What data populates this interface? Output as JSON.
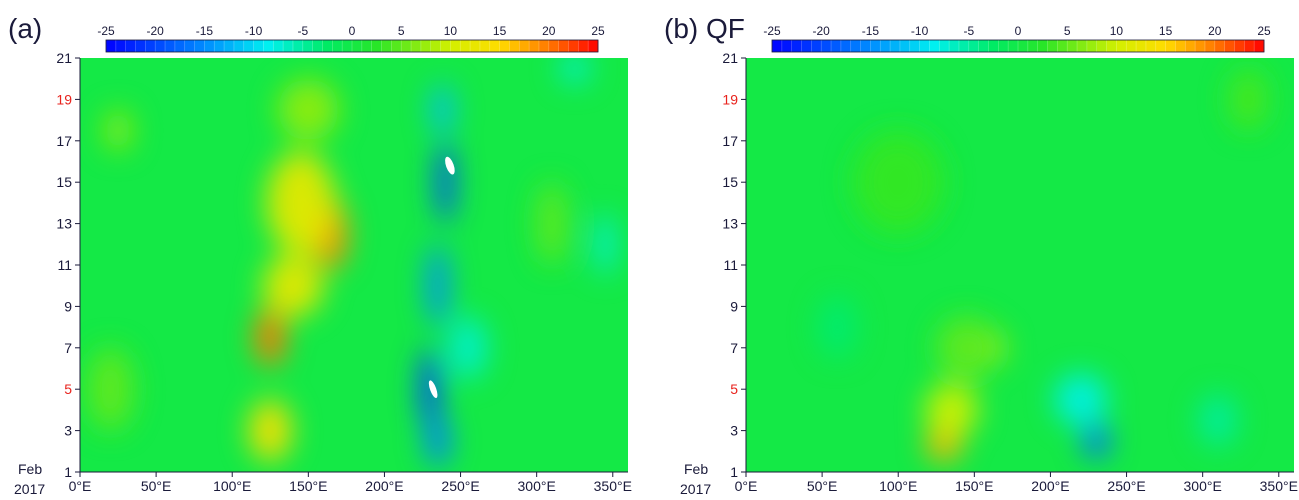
{
  "panels": [
    {
      "label": "(a)",
      "colorbar": {
        "min": -25,
        "max": 25,
        "step": 1,
        "tick_labels": [
          "-25",
          "-20",
          "-15",
          "-10",
          "-5",
          "0",
          "5",
          "10",
          "15",
          "20",
          "25"
        ]
      },
      "x_tick_labels": [
        "0°E",
        "50°E",
        "100°E",
        "150°E",
        "200°E",
        "250°E",
        "300°E",
        "350°E"
      ],
      "y_tick_labels": [
        "1",
        "3",
        "5",
        "7",
        "9",
        "11",
        "13",
        "15",
        "17",
        "19",
        "21"
      ],
      "highlighted_y_ticks": [
        "5",
        "19"
      ],
      "date_label": [
        "Feb",
        "2017"
      ]
    },
    {
      "label": "(b) QF",
      "colorbar": {
        "min": -25,
        "max": 25,
        "step": 1,
        "tick_labels": [
          "-25",
          "-20",
          "-15",
          "-10",
          "-5",
          "0",
          "5",
          "10",
          "15",
          "20",
          "25"
        ]
      },
      "x_tick_labels": [
        "0°E",
        "50°E",
        "100°E",
        "150°E",
        "200°E",
        "250°E",
        "300°E",
        "350°E"
      ],
      "y_tick_labels": [
        "1",
        "3",
        "5",
        "7",
        "9",
        "11",
        "13",
        "15",
        "17",
        "19",
        "21"
      ],
      "highlighted_y_ticks": [
        "5",
        "19"
      ],
      "date_label": [
        "Feb",
        "2017"
      ]
    }
  ],
  "colors": {
    "axis": "#1a1a3a",
    "highlight_tick": "#e8221c",
    "missing": "#ffffff"
  },
  "chart_data": [
    {
      "type": "heatmap",
      "title": "(a)",
      "xlabel": "",
      "ylabel": "",
      "xlim": [
        0,
        360
      ],
      "ylim": [
        1,
        21
      ],
      "x_ticks": [
        0,
        50,
        100,
        150,
        200,
        250,
        300,
        350
      ],
      "y_ticks": [
        1,
        3,
        5,
        7,
        9,
        11,
        13,
        15,
        17,
        19,
        21
      ],
      "color_range": [
        -25,
        25
      ],
      "background_value": 0,
      "features": [
        {
          "lon": 125,
          "day": 7.5,
          "value": 20,
          "width": 20,
          "height": 2.8
        },
        {
          "lon": 165,
          "day": 12.5,
          "value": 19,
          "width": 22,
          "height": 3.5
        },
        {
          "lon": 145,
          "day": 14,
          "value": 12,
          "width": 45,
          "height": 5
        },
        {
          "lon": 125,
          "day": 3,
          "value": 14,
          "width": 28,
          "height": 3
        },
        {
          "lon": 140,
          "day": 10,
          "value": 12,
          "width": 40,
          "height": 3
        },
        {
          "lon": 150,
          "day": 18.5,
          "value": 7,
          "width": 40,
          "height": 3
        },
        {
          "lon": 25,
          "day": 17.5,
          "value": 7,
          "width": 18,
          "height": 2
        },
        {
          "lon": 20,
          "day": 5,
          "value": 5,
          "width": 30,
          "height": 4
        },
        {
          "lon": 310,
          "day": 13,
          "value": 5,
          "width": 20,
          "height": 4
        },
        {
          "lon": 240,
          "day": 15,
          "value": -20,
          "width": 12,
          "height": 4
        },
        {
          "lon": 230,
          "day": 5,
          "value": -20,
          "width": 14,
          "height": 4
        },
        {
          "lon": 235,
          "day": 10,
          "value": -15,
          "width": 14,
          "height": 4
        },
        {
          "lon": 235,
          "day": 2.5,
          "value": -16,
          "width": 16,
          "height": 2.5
        },
        {
          "lon": 238,
          "day": 18.5,
          "value": -12,
          "width": 14,
          "height": 2.5
        },
        {
          "lon": 345,
          "day": 12,
          "value": -8,
          "width": 12,
          "height": 3
        },
        {
          "lon": 325,
          "day": 20.5,
          "value": -7,
          "width": 20,
          "height": 1.5
        },
        {
          "lon": 255,
          "day": 7,
          "value": -7,
          "width": 25,
          "height": 3
        }
      ],
      "missing_regions": [
        {
          "lon": 243,
          "day": 15.8,
          "width": 5,
          "height": 0.9
        },
        {
          "lon": 232,
          "day": 5,
          "width": 4,
          "height": 0.9
        }
      ]
    },
    {
      "type": "heatmap",
      "title": "(b) QF",
      "xlabel": "",
      "ylabel": "",
      "xlim": [
        0,
        360
      ],
      "ylim": [
        1,
        21
      ],
      "x_ticks": [
        0,
        50,
        100,
        150,
        200,
        250,
        300,
        350
      ],
      "y_ticks": [
        1,
        3,
        5,
        7,
        9,
        11,
        13,
        15,
        17,
        19,
        21
      ],
      "color_range": [
        -25,
        25
      ],
      "background_value": 0,
      "features": [
        {
          "lon": 130,
          "day": 2.3,
          "value": 17,
          "width": 24,
          "height": 1.6
        },
        {
          "lon": 135,
          "day": 4,
          "value": 10,
          "width": 35,
          "height": 2.5
        },
        {
          "lon": 165,
          "day": 7,
          "value": 9,
          "width": 10,
          "height": 1.5
        },
        {
          "lon": 145,
          "day": 7,
          "value": 5,
          "width": 40,
          "height": 3
        },
        {
          "lon": 230,
          "day": 2.5,
          "value": -17,
          "width": 18,
          "height": 1.7
        },
        {
          "lon": 220,
          "day": 4.5,
          "value": -8,
          "width": 35,
          "height": 2.5
        },
        {
          "lon": 310,
          "day": 3.5,
          "value": -5,
          "width": 25,
          "height": 2.5
        },
        {
          "lon": 100,
          "day": 15,
          "value": 3,
          "width": 60,
          "height": 5
        },
        {
          "lon": 330,
          "day": 19,
          "value": 4,
          "width": 25,
          "height": 3
        },
        {
          "lon": 60,
          "day": 8,
          "value": -3,
          "width": 25,
          "height": 3
        }
      ],
      "missing_regions": []
    }
  ]
}
